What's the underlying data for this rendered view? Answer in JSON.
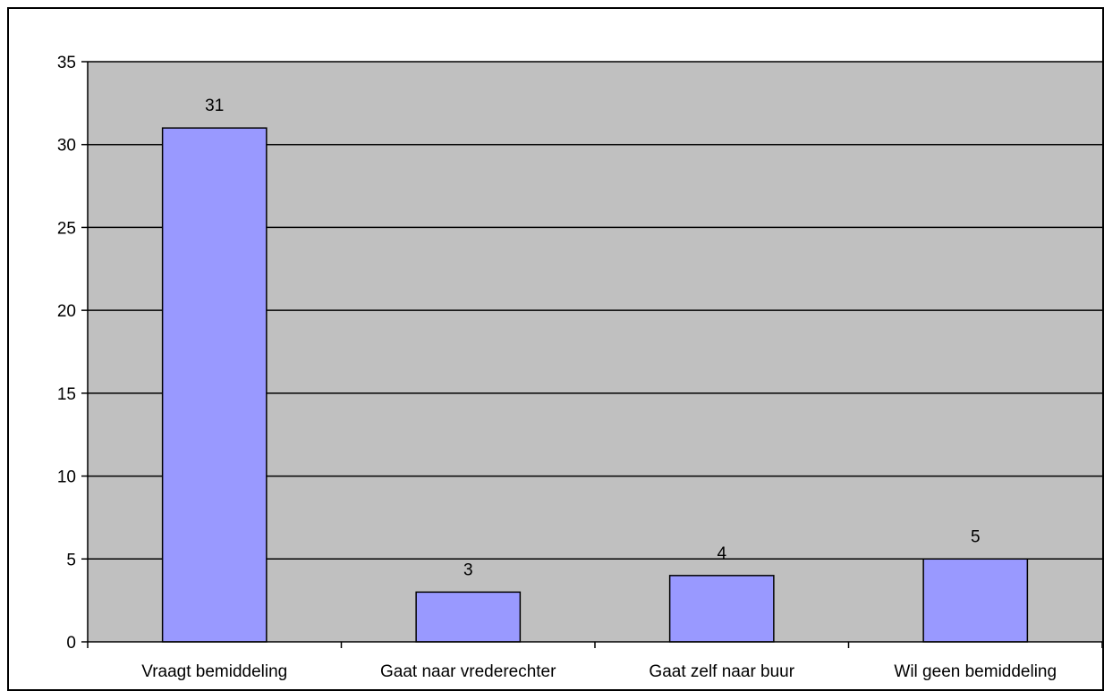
{
  "chart_data": {
    "type": "bar",
    "categories": [
      "Vraagt bemiddeling",
      "Gaat naar vrederechter",
      "Gaat zelf naar buur",
      "Wil geen bemiddeling"
    ],
    "values": [
      31,
      3,
      4,
      5
    ],
    "data_labels": [
      "31",
      "3",
      "4",
      "5"
    ],
    "y_ticks": [
      "0",
      "5",
      "10",
      "15",
      "20",
      "25",
      "30",
      "35"
    ],
    "ylim": [
      0,
      35
    ],
    "title": "",
    "xlabel": "",
    "ylabel": "",
    "grid": true,
    "legend": "none",
    "colors": {
      "plot_background": "#c0c0c0",
      "bar_fill": "#9999ff",
      "bar_stroke": "#000000",
      "gridline": "#000000"
    }
  }
}
